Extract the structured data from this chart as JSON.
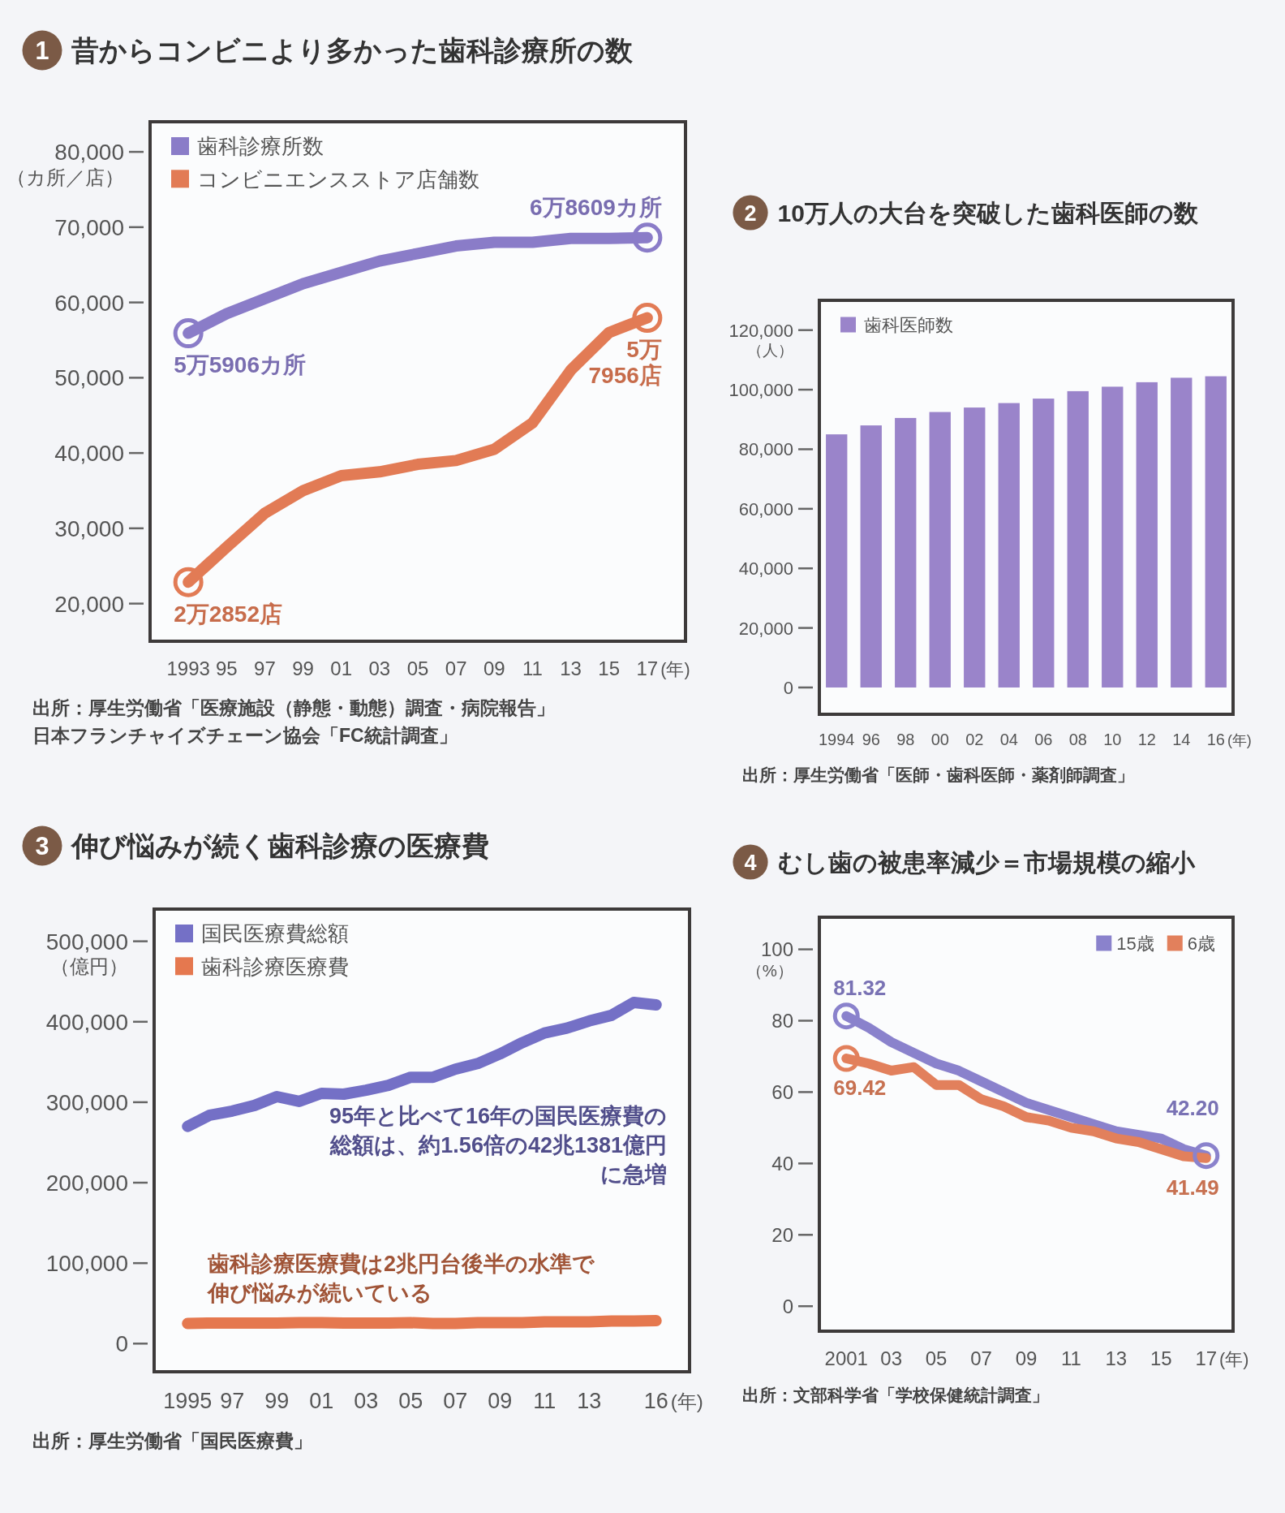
{
  "chart_data": [
    {
      "type": "line",
      "title": "昔からコンビニより多かった歯科診療所の数",
      "ylabel": "（カ所／店）",
      "xlabel": "(年)",
      "x": [
        1993,
        1995,
        1997,
        1999,
        2001,
        2003,
        2005,
        2007,
        2009,
        2011,
        2013,
        2015,
        2017
      ],
      "series": [
        {
          "name": "歯科診療所数",
          "color": "#8a7cc8",
          "values": [
            55906,
            58500,
            60500,
            62500,
            64000,
            65500,
            66500,
            67500,
            68000,
            68000,
            68500,
            68500,
            68609
          ]
        },
        {
          "name": "コンビニエンスストア店舗数",
          "color": "#e27b55",
          "values": [
            22852,
            27500,
            32000,
            35000,
            37000,
            37500,
            38500,
            39000,
            40500,
            44000,
            51000,
            56000,
            57956
          ]
        },
        {
          "type": "scatter",
          "marker": "circle",
          "color": "#8a7cc8",
          "x": [
            1993,
            2017
          ],
          "values": [
            55906,
            68609
          ]
        },
        {
          "type": "scatter",
          "marker": "circle",
          "color": "#e27b55",
          "x": [
            1993,
            2017
          ],
          "values": [
            22852,
            57956
          ]
        }
      ],
      "xlim": [
        1991,
        2019
      ],
      "ylim": [
        15000,
        84000
      ],
      "xticks": [
        1993,
        {
          "value": 1995,
          "label": "95"
        },
        {
          "value": 1997,
          "label": "97"
        },
        {
          "value": 1999,
          "label": "99"
        },
        {
          "value": 2001,
          "label": "01"
        },
        {
          "value": 2003,
          "label": "03"
        },
        {
          "value": 2005,
          "label": "05"
        },
        {
          "value": 2007,
          "label": "07"
        },
        {
          "value": 2009,
          "label": "09"
        },
        {
          "value": 2011,
          "label": "11"
        },
        {
          "value": 2013,
          "label": "13"
        },
        {
          "value": 2015,
          "label": "15"
        },
        {
          "value": 2017,
          "label": "17"
        }
      ],
      "yticks": [
        {
          "value": 20000,
          "label": "20,000"
        },
        {
          "value": 30000,
          "label": "30,000"
        },
        {
          "value": 40000,
          "label": "40,000"
        },
        {
          "value": 50000,
          "label": "50,000"
        },
        {
          "value": 60000,
          "label": "60,000"
        },
        {
          "value": 70000,
          "label": "70,000"
        },
        {
          "value": 80000,
          "label": "80,000"
        }
      ],
      "legend": "top left",
      "annotations": [
        "1",
        "5万5906カ所",
        "6万8609カ所",
        "2万2852店",
        "5万7956店",
        "出所：厚生労働省「医療施設（静態・動態）調査・病院報告」",
        "日本フランチャイズチェーン協会「FC統計調査」"
      ]
    },
    {
      "type": "bar",
      "title": "10万人の大台を突破した歯科医師の数",
      "ylabel": "（人）",
      "xlabel": "(年)",
      "categories": [
        "1994",
        "96",
        "98",
        "00",
        "02",
        "04",
        "06",
        "08",
        "10",
        "12",
        "14",
        "16"
      ],
      "series": [
        {
          "name": "歯科医師数",
          "color": "#9a84ca",
          "values": [
            85000,
            88000,
            90500,
            92500,
            94000,
            95500,
            97000,
            99500,
            101000,
            102500,
            104000,
            104500
          ]
        }
      ],
      "ylim": [
        -9000,
        130000
      ],
      "yticks": [
        0,
        {
          "value": 20000,
          "label": "20,000"
        },
        {
          "value": 40000,
          "label": "40,000"
        },
        {
          "value": 60000,
          "label": "60,000"
        },
        {
          "value": 80000,
          "label": "80,000"
        },
        {
          "value": 100000,
          "label": "100,000"
        },
        {
          "value": 120000,
          "label": "120,000"
        }
      ],
      "legend": "top left",
      "annotations": [
        "2",
        "出所：厚生労働省「医師・歯科医師・薬剤師調査」"
      ]
    },
    {
      "type": "line",
      "title": "伸び悩みが続く歯科診療の医療費",
      "ylabel": "（億円）",
      "xlabel": "(年)",
      "x": [
        1995,
        1996,
        1997,
        1998,
        1999,
        2000,
        2001,
        2002,
        2003,
        2004,
        2005,
        2006,
        2007,
        2008,
        2009,
        2010,
        2011,
        2012,
        2013,
        2014,
        2015,
        2016
      ],
      "series": [
        {
          "name": "国民医療費総額",
          "color": "#7470c6",
          "values": [
            270000,
            284000,
            289000,
            296000,
            307000,
            301000,
            311000,
            310000,
            315000,
            321000,
            331000,
            331000,
            341000,
            348000,
            360000,
            374000,
            386000,
            392000,
            401000,
            408000,
            424000,
            421000
          ]
        },
        {
          "name": "歯科診療医療費",
          "color": "#e5784f",
          "values": [
            25000,
            25500,
            25500,
            25500,
            25500,
            26000,
            26000,
            25500,
            25500,
            25500,
            26000,
            25000,
            25000,
            26000,
            26000,
            26000,
            27000,
            27000,
            27000,
            28000,
            28000,
            28500
          ]
        }
      ],
      "xlim": [
        1993.5,
        2017.5
      ],
      "ylim": [
        -35000,
        540000
      ],
      "xticks": [
        1995,
        {
          "value": 1997,
          "label": "97"
        },
        {
          "value": 1999,
          "label": "99"
        },
        {
          "value": 2001,
          "label": "01"
        },
        {
          "value": 2003,
          "label": "03"
        },
        {
          "value": 2005,
          "label": "05"
        },
        {
          "value": 2007,
          "label": "07"
        },
        {
          "value": 2009,
          "label": "09"
        },
        {
          "value": 2011,
          "label": "11"
        },
        {
          "value": 2013,
          "label": "13"
        },
        {
          "value": 2016,
          "label": "16"
        }
      ],
      "yticks": [
        0,
        {
          "value": 100000,
          "label": "100,000"
        },
        {
          "value": 200000,
          "label": "200,000"
        },
        {
          "value": 300000,
          "label": "300,000"
        },
        {
          "value": 400000,
          "label": "400,000"
        },
        {
          "value": 500000,
          "label": "500,000"
        }
      ],
      "legend": "top left",
      "annotations": [
        "3",
        "95年と比べて16年の国民医療費の総額は、約1.56倍の42兆1381億円に急増",
        "歯科診療医療費は2兆円台後半の水準で伸び悩みが続いている",
        "出所：厚生労働省「国民医療費」"
      ]
    },
    {
      "type": "line",
      "title": "むし歯の被患率減少＝市場規模の縮小",
      "ylabel": "（%）",
      "xlabel": "(年)",
      "x": [
        2001,
        2002,
        2003,
        2004,
        2005,
        2006,
        2007,
        2008,
        2009,
        2010,
        2011,
        2012,
        2013,
        2014,
        2015,
        2016,
        2017
      ],
      "series": [
        {
          "name": "15歳",
          "color": "#8a82cc",
          "values": [
            81.32,
            78,
            74,
            71,
            68,
            66,
            63,
            60,
            57,
            55,
            53,
            51,
            49,
            48,
            47,
            44,
            42.2
          ],
          "value_labels": [
            "81.32",
            null,
            null,
            null,
            null,
            null,
            null,
            null,
            null,
            null,
            null,
            null,
            null,
            null,
            null,
            null,
            "42.20"
          ]
        },
        {
          "name": "6歳",
          "color": "#e2805c",
          "values": [
            69.42,
            68,
            66,
            67,
            62,
            62,
            58,
            56,
            53,
            52,
            50,
            49,
            47,
            46,
            44,
            42,
            41.49
          ],
          "value_labels": [
            "69.42",
            null,
            null,
            null,
            null,
            null,
            null,
            null,
            null,
            null,
            null,
            null,
            null,
            null,
            null,
            null,
            "41.49"
          ]
        },
        {
          "type": "scatter",
          "marker": "circle",
          "color": "#e2805c",
          "x": [
            2001
          ],
          "values": [
            69.42
          ]
        },
        {
          "type": "scatter",
          "marker": "circle",
          "color": "#8a82cc",
          "x": [
            2001,
            2017
          ],
          "values": [
            81.32,
            42.2
          ]
        }
      ],
      "xlim": [
        1999.8,
        2018.2
      ],
      "ylim": [
        -7,
        109
      ],
      "xticks": [
        2001,
        {
          "value": 2003,
          "label": "03"
        },
        {
          "value": 2005,
          "label": "05"
        },
        {
          "value": 2007,
          "label": "07"
        },
        {
          "value": 2009,
          "label": "09"
        },
        {
          "value": 2011,
          "label": "11"
        },
        {
          "value": 2013,
          "label": "13"
        },
        {
          "value": 2015,
          "label": "15"
        },
        {
          "value": 2017,
          "label": "17"
        }
      ],
      "yticks": [
        0,
        20,
        40,
        60,
        80,
        100
      ],
      "legend": "top right",
      "annotations": [
        "4",
        "出所：文部科学省「学校保健統計調査」"
      ]
    }
  ]
}
